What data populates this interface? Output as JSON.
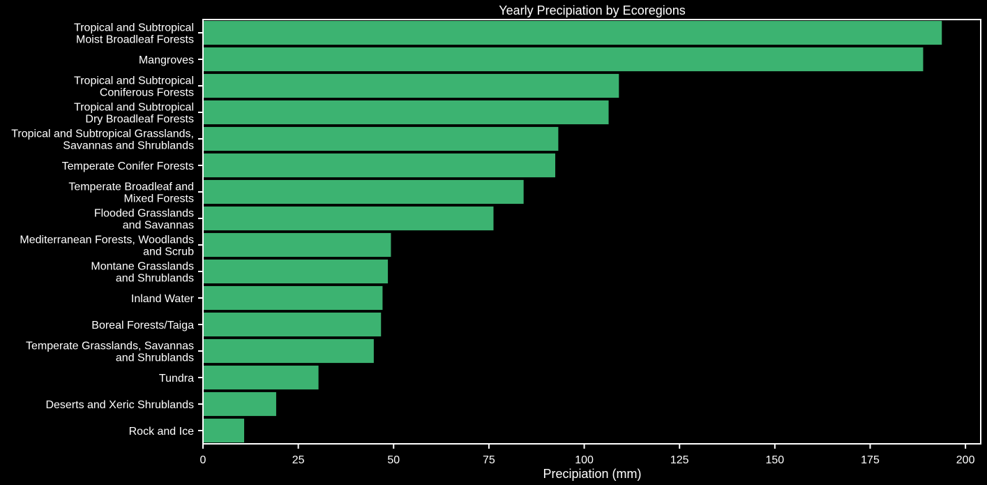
{
  "chart_data": {
    "type": "bar",
    "orientation": "horizontal",
    "title": "Yearly Precipiation by Ecoregions",
    "xlabel": "Precipiation (mm)",
    "ylabel": "",
    "xlim": [
      0,
      204
    ],
    "xticks": [
      0,
      25,
      50,
      75,
      100,
      125,
      150,
      175,
      200
    ],
    "grid": false,
    "bar_color": "#3cb371",
    "background": "#000000",
    "foreground": "#ffffff",
    "categories": [
      [
        "Tropical and Subtropical",
        "Moist Broadleaf Forests"
      ],
      [
        "Mangroves"
      ],
      [
        "Tropical and Subtropical",
        "Coniferous Forests"
      ],
      [
        "Tropical and Subtropical",
        "Dry Broadleaf Forests"
      ],
      [
        "Tropical and Subtropical Grasslands,",
        "Savannas and Shrublands"
      ],
      [
        "Temperate Conifer Forests"
      ],
      [
        "Temperate Broadleaf and",
        "Mixed Forests"
      ],
      [
        "Flooded Grasslands",
        "and Savannas"
      ],
      [
        "Mediterranean Forests, Woodlands",
        "and Scrub"
      ],
      [
        "Montane Grasslands",
        "and Shrublands"
      ],
      [
        "Inland Water"
      ],
      [
        "Boreal Forests/Taiga"
      ],
      [
        "Temperate Grasslands, Savannas",
        "and Shrublands"
      ],
      [
        "Tundra"
      ],
      [
        "Deserts and Xeric Shrublands"
      ],
      [
        "Rock and Ice"
      ]
    ],
    "values": [
      193.8,
      188.9,
      109.1,
      106.4,
      93.2,
      92.4,
      84.1,
      76.2,
      49.3,
      48.5,
      47.1,
      46.7,
      44.8,
      30.3,
      19.2,
      10.8
    ]
  }
}
